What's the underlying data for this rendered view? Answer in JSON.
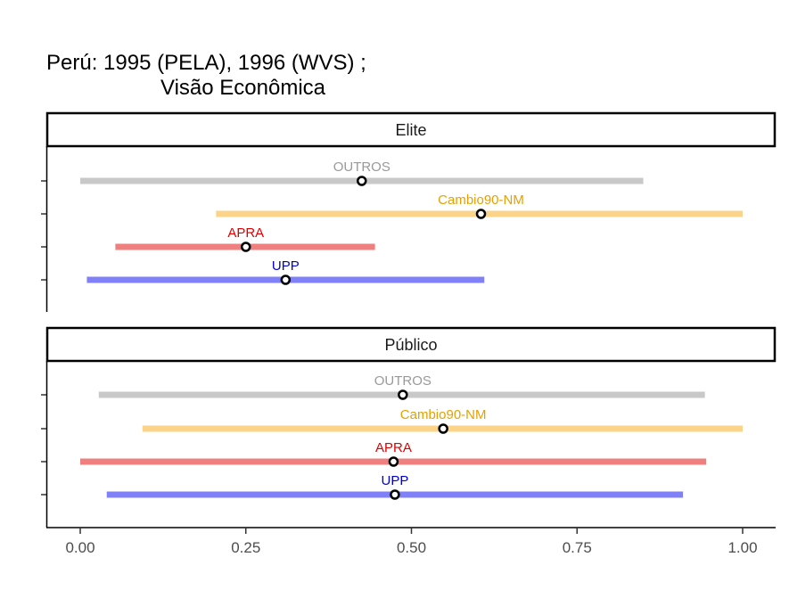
{
  "title_line1": "Perú: 1995 (PELA), 1996 (WVS) ;",
  "title_line2": "Visão Econômica",
  "chart_data": {
    "type": "interval",
    "xlim": [
      0,
      1
    ],
    "x_ticks": [
      "0.00",
      "0.25",
      "0.50",
      "0.75",
      "1.00"
    ],
    "x_tick_values": [
      0,
      0.25,
      0.5,
      0.75,
      1
    ],
    "grid": false,
    "panels": [
      {
        "name": "Elite",
        "items": [
          {
            "label": "OUTROS",
            "color": "#999999",
            "bar_color": "#c8c8c8",
            "low": 0.0,
            "mid": 0.425,
            "high": 0.85
          },
          {
            "label": "Cambio90-NM",
            "color": "#e6a000",
            "bar_color": "#fbd48a",
            "low": 0.205,
            "mid": 0.605,
            "high": 1.0
          },
          {
            "label": "APRA",
            "color": "#e00000",
            "bar_color": "#f07f7f",
            "low": 0.053,
            "mid": 0.25,
            "high": 0.445
          },
          {
            "label": "UPP",
            "color": "#0000cc",
            "bar_color": "#8080f8",
            "low": 0.01,
            "mid": 0.31,
            "high": 0.61
          }
        ]
      },
      {
        "name": "Público",
        "items": [
          {
            "label": "OUTROS",
            "color": "#999999",
            "bar_color": "#c8c8c8",
            "low": 0.028,
            "mid": 0.487,
            "high": 0.943
          },
          {
            "label": "Cambio90-NM",
            "color": "#e6a000",
            "bar_color": "#fbd48a",
            "low": 0.094,
            "mid": 0.548,
            "high": 1.0
          },
          {
            "label": "APRA",
            "color": "#e00000",
            "bar_color": "#f07f7f",
            "low": 0.0,
            "mid": 0.473,
            "high": 0.945
          },
          {
            "label": "UPP",
            "color": "#0000cc",
            "bar_color": "#8080f8",
            "low": 0.04,
            "mid": 0.475,
            "high": 0.91
          }
        ]
      }
    ]
  }
}
